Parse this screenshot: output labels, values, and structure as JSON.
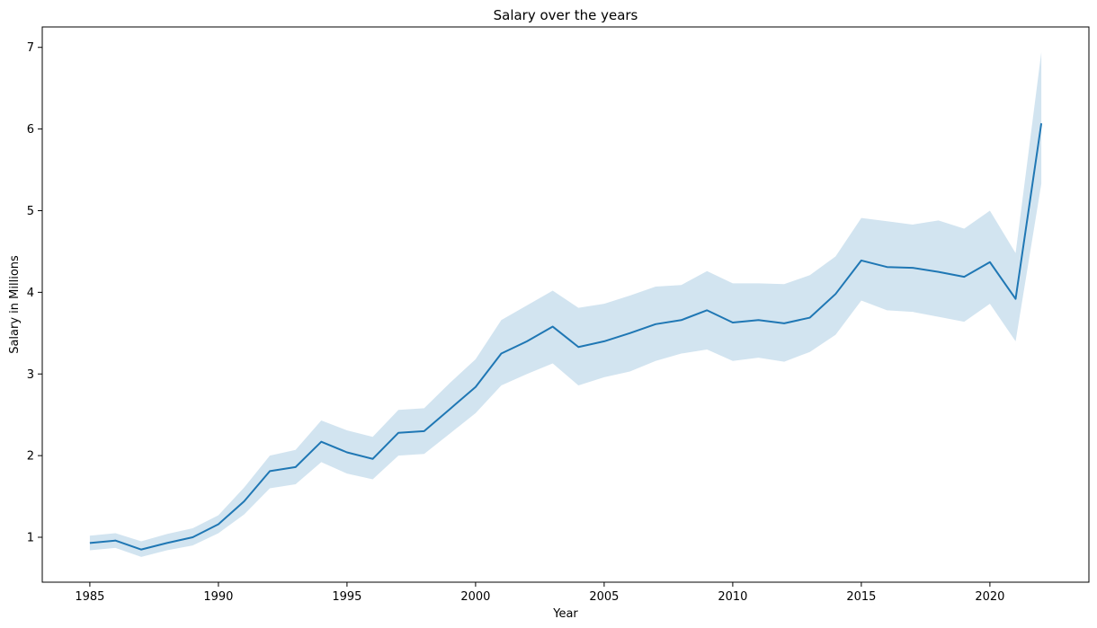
{
  "chart_data": {
    "type": "line",
    "title": "Salary over the years",
    "xlabel": "Year",
    "ylabel": "Salary in Millions",
    "xlim": [
      1983.15,
      2023.85
    ],
    "ylim": [
      0.45,
      7.25
    ],
    "xticks": [
      1985,
      1990,
      1995,
      2000,
      2005,
      2010,
      2015,
      2020
    ],
    "yticks": [
      1,
      2,
      3,
      4,
      5,
      6,
      7
    ],
    "grid": false,
    "line_color": "#1f77b4",
    "band_color": "#1f77b4",
    "band_opacity": 0.2,
    "series": [
      {
        "x": [
          1985,
          1986,
          1987,
          1988,
          1989,
          1990,
          1991,
          1992,
          1993,
          1994,
          1995,
          1996,
          1997,
          1998,
          1999,
          2000,
          2001,
          2002,
          2003,
          2004,
          2005,
          2006,
          2007,
          2008,
          2009,
          2010,
          2011,
          2012,
          2013,
          2014,
          2015,
          2016,
          2017,
          2018,
          2019,
          2020,
          2021,
          2022
        ],
        "y": [
          0.93,
          0.96,
          0.85,
          0.93,
          1.0,
          1.16,
          1.44,
          1.81,
          1.86,
          2.17,
          2.04,
          1.96,
          2.28,
          2.3,
          2.57,
          2.84,
          3.25,
          3.4,
          3.58,
          3.33,
          3.4,
          3.5,
          3.61,
          3.66,
          3.78,
          3.63,
          3.66,
          3.62,
          3.69,
          3.98,
          4.39,
          4.31,
          4.3,
          4.25,
          4.19,
          4.37,
          3.92,
          6.07
        ],
        "lower": [
          0.84,
          0.87,
          0.76,
          0.84,
          0.9,
          1.05,
          1.28,
          1.6,
          1.65,
          1.92,
          1.78,
          1.71,
          2.0,
          2.02,
          2.27,
          2.52,
          2.86,
          3.0,
          3.13,
          2.86,
          2.96,
          3.03,
          3.16,
          3.25,
          3.3,
          3.16,
          3.2,
          3.15,
          3.27,
          3.48,
          3.9,
          3.78,
          3.76,
          3.7,
          3.64,
          3.86,
          3.4,
          5.33
        ],
        "upper": [
          1.02,
          1.05,
          0.95,
          1.04,
          1.11,
          1.27,
          1.61,
          2.0,
          2.07,
          2.43,
          2.31,
          2.23,
          2.56,
          2.58,
          2.89,
          3.18,
          3.66,
          3.84,
          4.02,
          3.81,
          3.86,
          3.96,
          4.07,
          4.09,
          4.26,
          4.11,
          4.11,
          4.1,
          4.21,
          4.44,
          4.91,
          4.87,
          4.83,
          4.88,
          4.78,
          5.0,
          4.48,
          6.94
        ]
      }
    ]
  }
}
